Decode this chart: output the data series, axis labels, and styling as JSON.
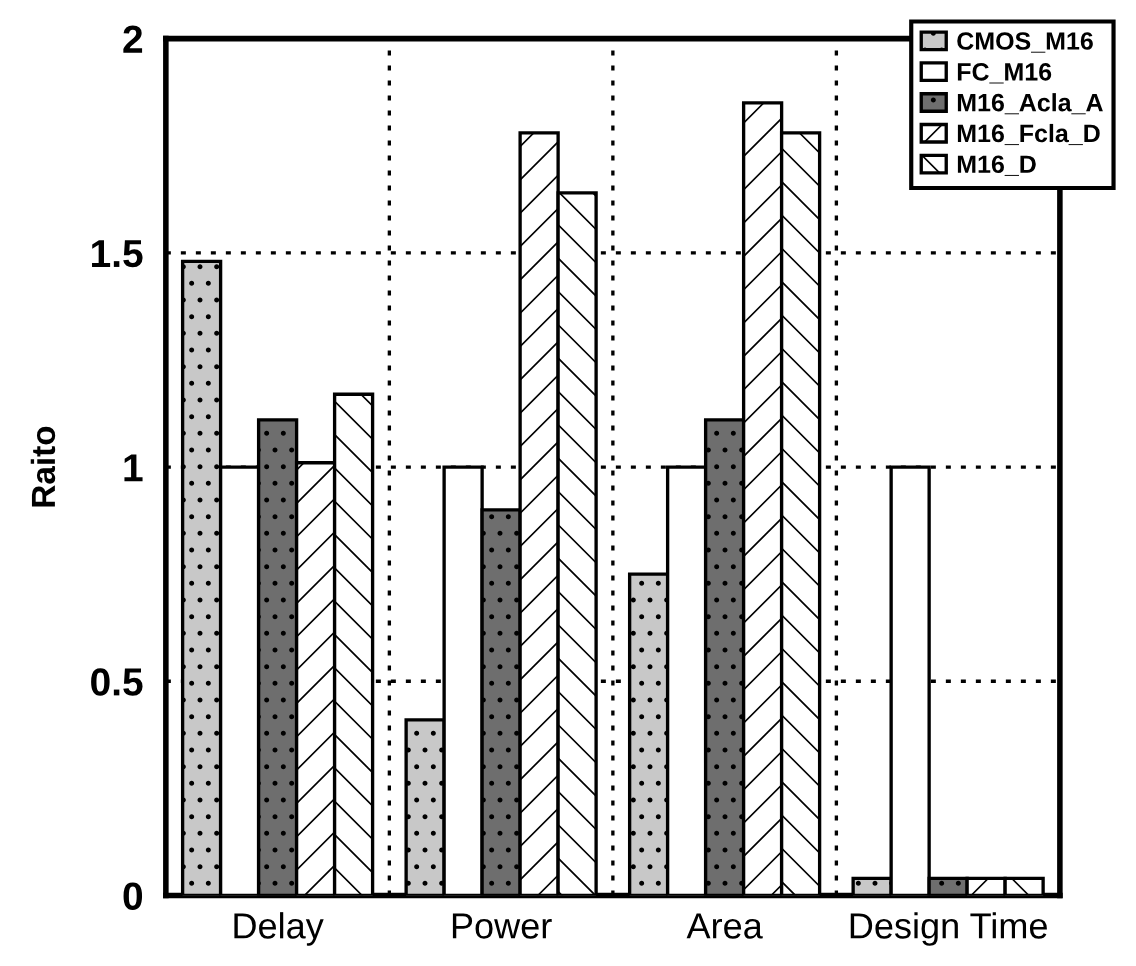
{
  "chart_data": {
    "type": "bar",
    "ylabel": "Raito",
    "categories": [
      "Delay",
      "Power",
      "Area",
      "Design Time"
    ],
    "series": [
      {
        "name": "CMOS_M16",
        "color": "#c8c8c8",
        "values": [
          1.48,
          0.41,
          0.75,
          0.04
        ]
      },
      {
        "name": "FC_M16",
        "color": "#ffffff",
        "values": [
          1.0,
          1.0,
          1.0,
          1.0
        ]
      },
      {
        "name": "M16_Acla_A",
        "color": "#6e6e6e",
        "values": [
          1.11,
          0.9,
          1.11,
          0.04
        ]
      },
      {
        "name": "M16_Fcla_D",
        "color": "#ffffff",
        "values": [
          1.01,
          1.78,
          1.85,
          0.04
        ]
      },
      {
        "name": "M16_D",
        "color": "#ffffff",
        "values": [
          1.17,
          1.64,
          1.78,
          0.04
        ]
      }
    ],
    "ylim": [
      0,
      2
    ],
    "yticks": [
      0,
      0.5,
      1,
      1.5,
      2
    ],
    "grid": true,
    "legend": "top right"
  }
}
